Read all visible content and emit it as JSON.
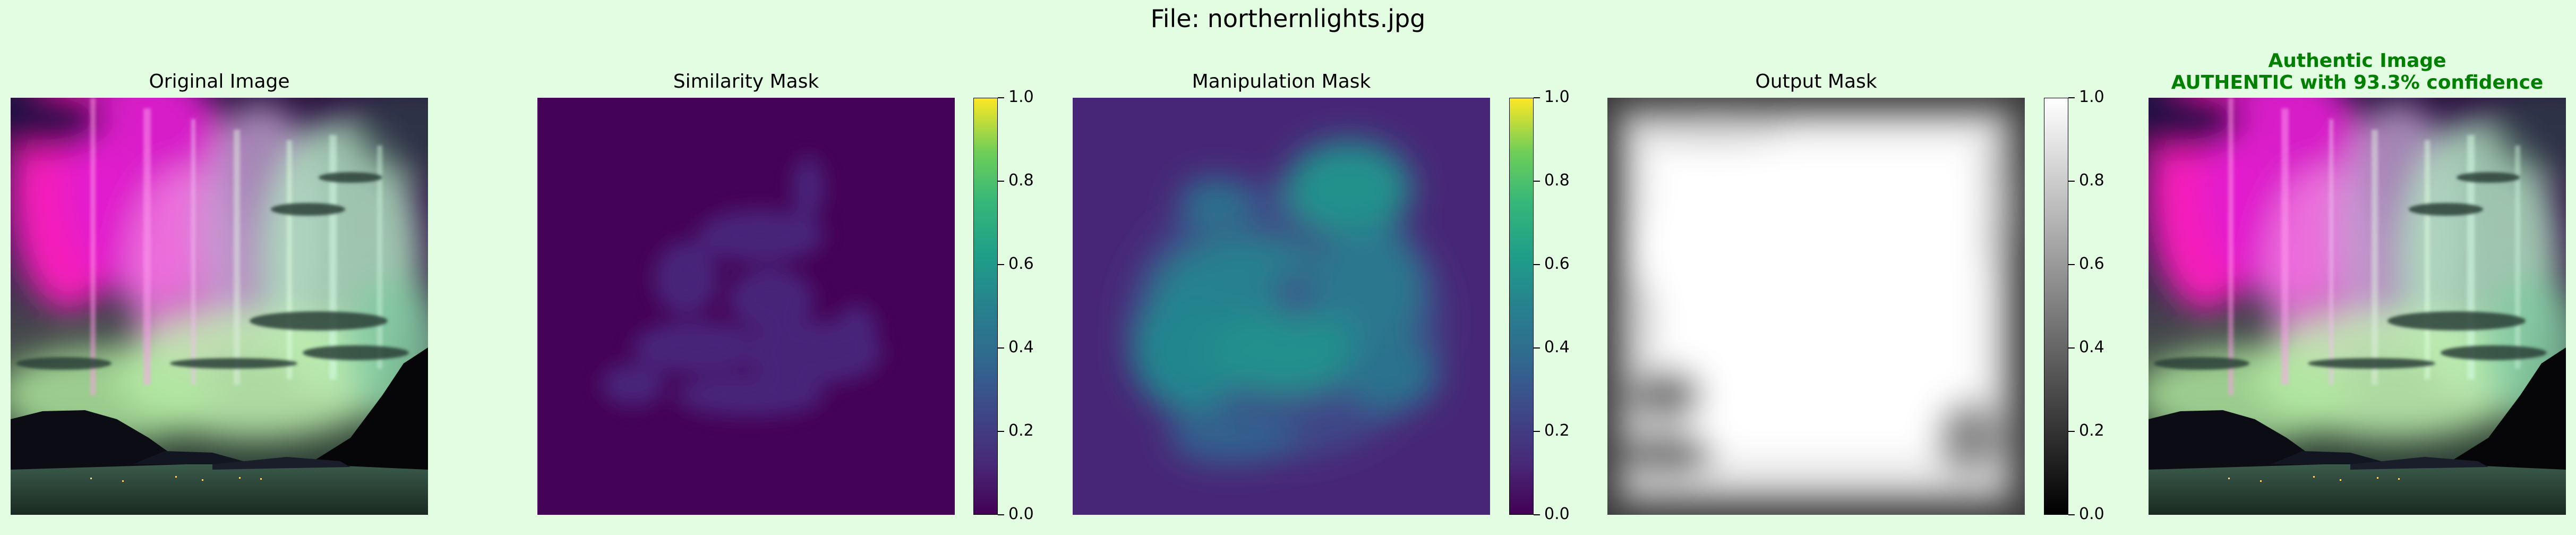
{
  "figure": {
    "suptitle": "File: northernlights.jpg"
  },
  "panels": {
    "original": {
      "title": "Original Image"
    },
    "similarity": {
      "title": "Similarity Mask"
    },
    "manipulation": {
      "title": "Manipulation Mask"
    },
    "output": {
      "title": "Output Mask"
    },
    "verdict": {
      "title_line1": "Authentic Image",
      "title_line2": "AUTHENTIC with 93.3% confidence",
      "color": "#008000"
    }
  },
  "colorbars": {
    "similarity": {
      "colormap": "viridis",
      "ticks": [
        "0.0",
        "0.2",
        "0.4",
        "0.6",
        "0.8",
        "1.0"
      ]
    },
    "manipulation": {
      "colormap": "viridis",
      "ticks": [
        "0.0",
        "0.2",
        "0.4",
        "0.6",
        "0.8",
        "1.0"
      ]
    },
    "output": {
      "colormap": "gray",
      "ticks": [
        "0.0",
        "0.2",
        "0.4",
        "0.6",
        "0.8",
        "1.0"
      ]
    }
  }
}
